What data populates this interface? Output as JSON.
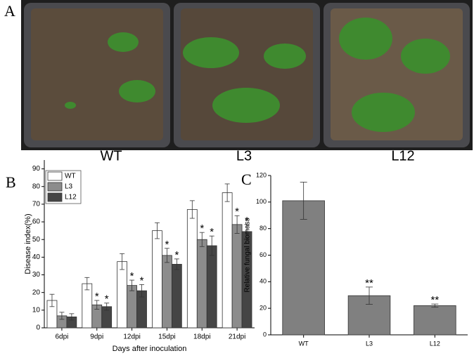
{
  "photo_panel": {
    "panel_label": "A",
    "captions": [
      "WT",
      "L3",
      "L12"
    ]
  },
  "chart_data": [
    {
      "type": "bar",
      "panel_label": "B",
      "x_label": "Days after inoculation",
      "y_label": "Disease index(%)",
      "categories": [
        "6dpi",
        "9dpi",
        "12dpi",
        "15dpi",
        "18dpi",
        "21dpi"
      ],
      "series": [
        {
          "name": "WT",
          "color": "#ffffff",
          "values": [
            15.5,
            25,
            37.5,
            55,
            67,
            76.5
          ],
          "errors": [
            3.5,
            3.5,
            4.5,
            4.5,
            5,
            5
          ],
          "significance": [
            null,
            null,
            null,
            null,
            null,
            null
          ]
        },
        {
          "name": "L3",
          "color": "#8c8c8c",
          "values": [
            6.8,
            13,
            24,
            41,
            50,
            58.5
          ],
          "errors": [
            2,
            2.5,
            3,
            4,
            4,
            5
          ],
          "significance": [
            null,
            "*",
            "*",
            "*",
            "*",
            "*"
          ]
        },
        {
          "name": "L12",
          "color": "#454545",
          "values": [
            6.2,
            12,
            21,
            36,
            46.5,
            54.5
          ],
          "errors": [
            1.8,
            2,
            3.5,
            3,
            5.5,
            4
          ],
          "significance": [
            null,
            "*",
            "*",
            "*",
            "*",
            "*"
          ]
        }
      ],
      "ylim": [
        0,
        95
      ],
      "yticks": [
        0,
        10,
        20,
        30,
        40,
        50,
        60,
        70,
        80,
        90
      ],
      "legend": "upper-left"
    },
    {
      "type": "bar",
      "panel_label": "C",
      "y_label": "Relative fungal biomass",
      "categories": [
        "WT",
        "L3",
        "L12"
      ],
      "series": [
        {
          "color": "#808080",
          "values": [
            101,
            29.5,
            22
          ],
          "errors": [
            14,
            6.5,
            1.2
          ],
          "significance": [
            null,
            "**",
            "**"
          ]
        }
      ],
      "ylim": [
        0,
        120
      ],
      "yticks": [
        0,
        20,
        40,
        60,
        80,
        100,
        120
      ]
    }
  ]
}
